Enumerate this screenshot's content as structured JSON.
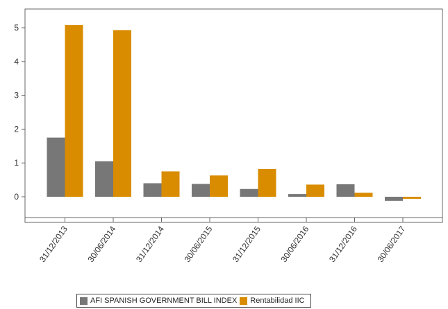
{
  "chart_data": {
    "type": "bar",
    "title": "",
    "xlabel": "",
    "ylabel": "",
    "ylim": [
      -0.7,
      5.6
    ],
    "yticks": [
      0,
      1,
      2,
      3,
      4,
      5
    ],
    "grid": false,
    "legend_position": "bottom",
    "categories": [
      "31/12/2013",
      "30/06/2014",
      "31/12/2014",
      "30/06/2015",
      "31/12/2015",
      "30/06/2016",
      "31/12/2016",
      "30/06/2017"
    ],
    "series": [
      {
        "name": "AFI SPANISH GOVERNMENT BILL INDEX",
        "color": "#777777",
        "values": [
          1.75,
          1.05,
          0.4,
          0.38,
          0.23,
          0.08,
          0.37,
          -0.12
        ]
      },
      {
        "name": "Rentabilidad IIC",
        "color": "#d98c00",
        "values": [
          5.08,
          4.93,
          0.75,
          0.63,
          0.82,
          0.36,
          0.12,
          -0.06
        ]
      }
    ]
  }
}
